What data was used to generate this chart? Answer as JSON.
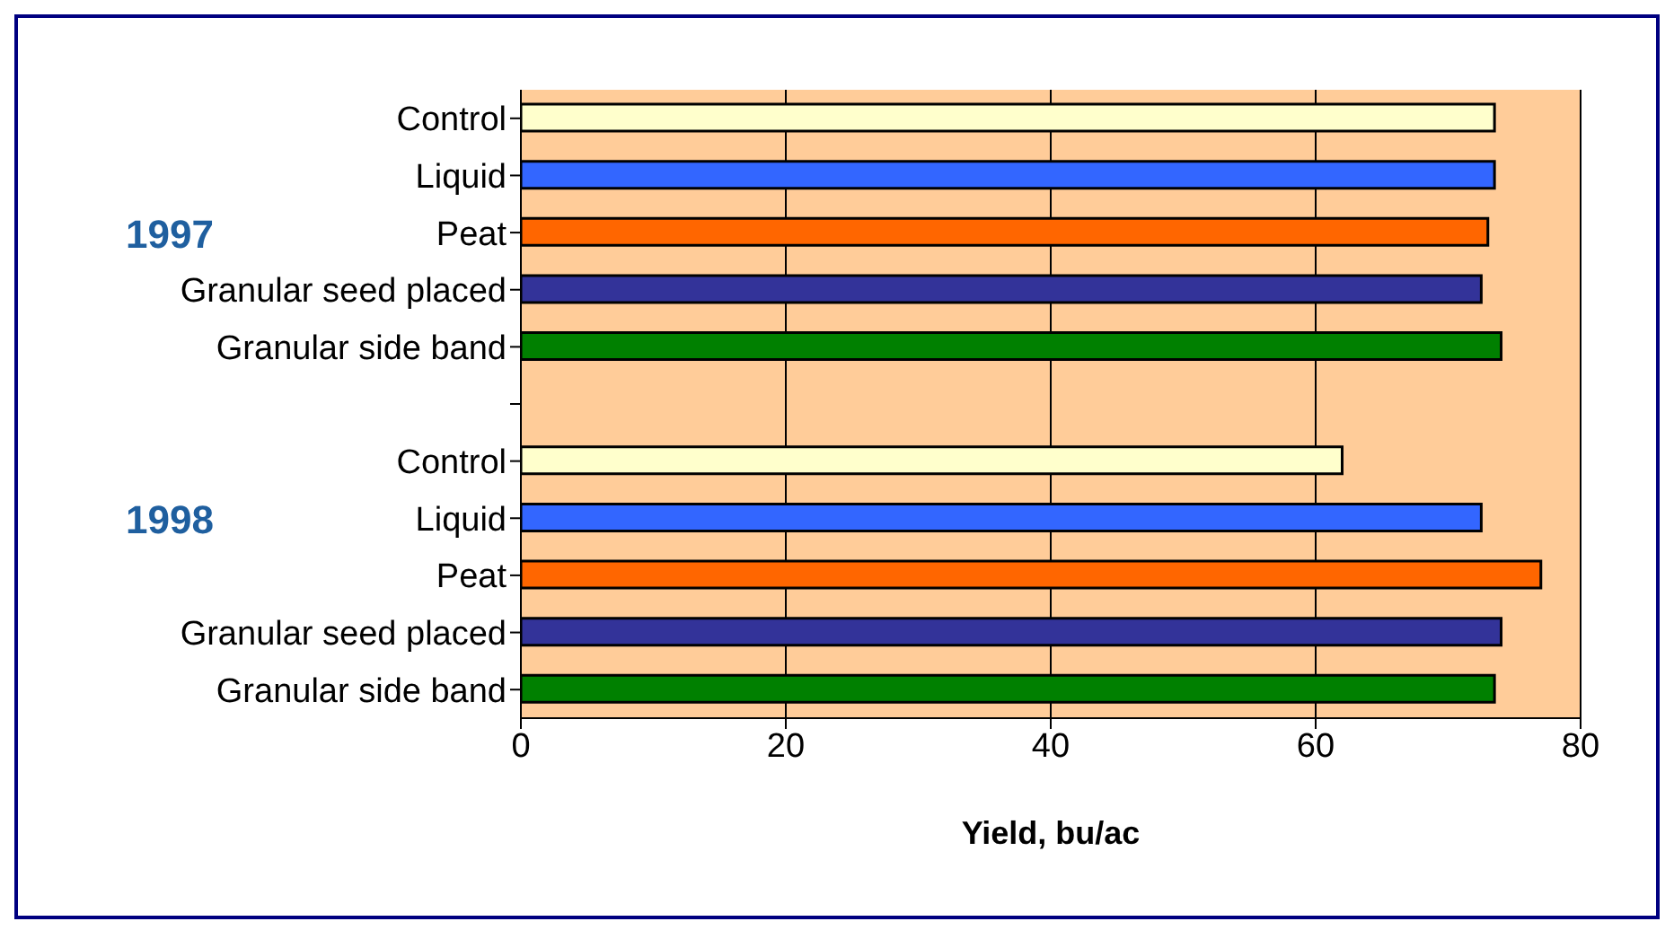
{
  "chart_data": {
    "type": "bar",
    "orientation": "horizontal",
    "xlabel": "Yield, bu/ac",
    "categories": [
      "Control",
      "Liquid",
      "Peat",
      "Granular seed placed",
      "Granular side band",
      null,
      "Control",
      "Liquid",
      "Peat",
      "Granular seed placed",
      "Granular side band"
    ],
    "values": [
      73.5,
      73.5,
      73,
      72.5,
      74,
      null,
      62,
      72.5,
      77,
      74,
      73.5
    ],
    "colors": [
      "#ffffcc",
      "#3366ff",
      "#ff6600",
      "#333399",
      "#008000",
      null,
      "#ffffcc",
      "#3366ff",
      "#ff6600",
      "#333399",
      "#008000"
    ],
    "xlim": [
      0,
      80
    ],
    "xticks": [
      0,
      20,
      40,
      60,
      80
    ],
    "grid": "x",
    "annotations": [
      "1997",
      "1998"
    ]
  }
}
